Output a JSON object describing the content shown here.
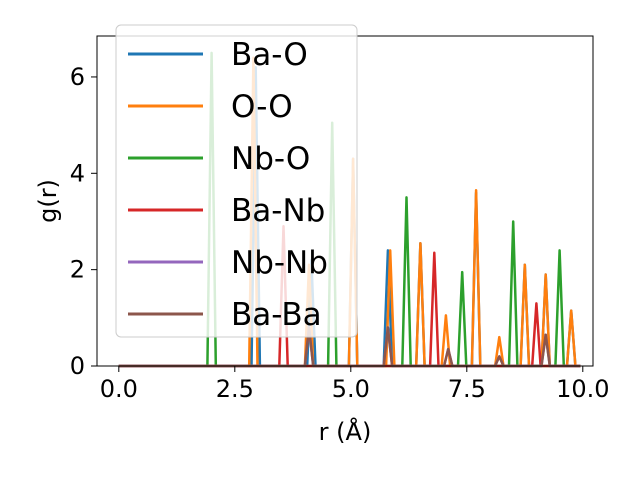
{
  "chart_data": {
    "type": "line",
    "xlabel": "r (Å)",
    "ylabel": "g(r)",
    "xlim": [
      -0.47,
      10.22
    ],
    "ylim": [
      0,
      6.85
    ],
    "xticks": [
      0.0,
      2.5,
      5.0,
      7.5,
      10.0
    ],
    "xtick_labels": [
      "0.0",
      "2.5",
      "5.0",
      "7.5",
      "10.0"
    ],
    "yticks": [
      0,
      2,
      4,
      6
    ],
    "ytick_labels": [
      "0",
      "2",
      "4",
      "6"
    ],
    "grid": false,
    "legend_position": "top-left",
    "peak_half_width": 0.09,
    "series": [
      {
        "name": "Ba-O",
        "color": "#1f77b4",
        "peaks": [
          [
            2.95,
            6.2
          ],
          [
            4.15,
            2.2
          ],
          [
            5.05,
            4.3
          ],
          [
            5.8,
            2.4
          ],
          [
            6.5,
            2.55
          ],
          [
            7.7,
            3.6
          ],
          [
            8.75,
            2.1
          ],
          [
            9.2,
            1.9
          ],
          [
            9.75,
            1.15
          ]
        ]
      },
      {
        "name": "O-O",
        "color": "#ff7f0e",
        "peaks": [
          [
            2.9,
            6.4
          ],
          [
            4.1,
            2.1
          ],
          [
            5.05,
            4.3
          ],
          [
            5.85,
            2.4
          ],
          [
            6.5,
            2.55
          ],
          [
            7.05,
            1.05
          ],
          [
            7.7,
            3.65
          ],
          [
            8.2,
            0.6
          ],
          [
            8.75,
            2.1
          ],
          [
            9.2,
            1.9
          ],
          [
            9.75,
            1.15
          ]
        ]
      },
      {
        "name": "Nb-O",
        "color": "#2ca02c",
        "peaks": [
          [
            2.0,
            6.5
          ],
          [
            4.6,
            5.05
          ],
          [
            6.2,
            3.5
          ],
          [
            7.4,
            1.95
          ],
          [
            8.5,
            3.0
          ],
          [
            9.5,
            2.4
          ]
        ]
      },
      {
        "name": "Ba-Nb",
        "color": "#d62728",
        "peaks": [
          [
            3.55,
            2.9
          ],
          [
            6.8,
            2.35
          ],
          [
            9.0,
            1.3
          ]
        ]
      },
      {
        "name": "Nb-Nb",
        "color": "#9467bd",
        "peaks": [
          [
            4.1,
            0.8
          ],
          [
            5.8,
            0.8
          ],
          [
            7.1,
            0.35
          ],
          [
            8.2,
            0.2
          ],
          [
            9.2,
            0.65
          ]
        ]
      },
      {
        "name": "Ba-Ba",
        "color": "#8c564b",
        "peaks": [
          [
            4.1,
            0.8
          ],
          [
            5.8,
            0.8
          ],
          [
            7.1,
            0.35
          ],
          [
            8.2,
            0.2
          ],
          [
            9.2,
            0.65
          ]
        ]
      }
    ]
  }
}
